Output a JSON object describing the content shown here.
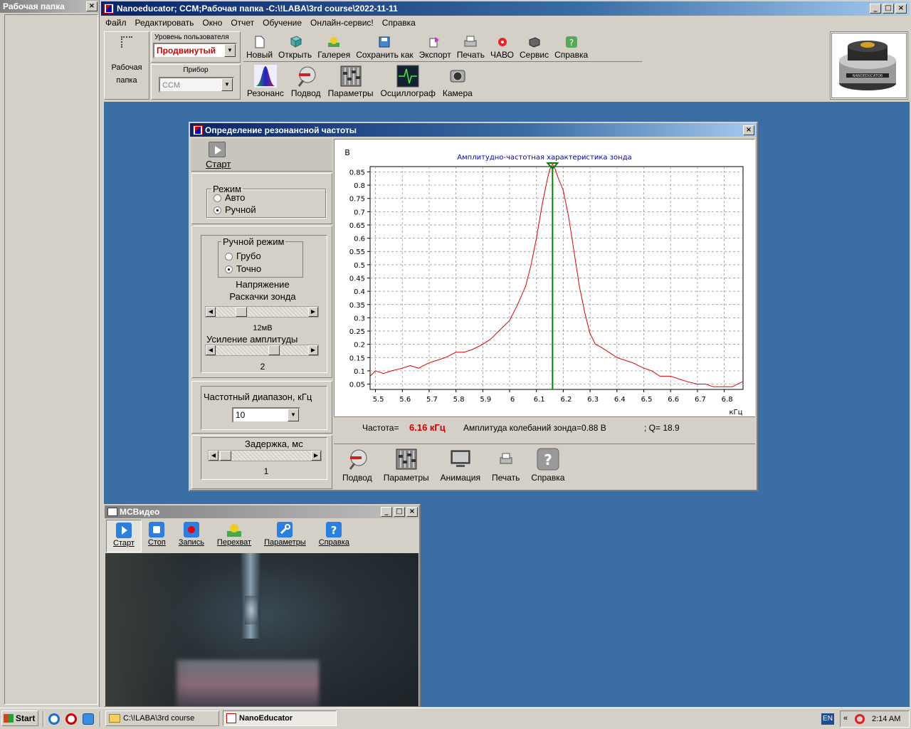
{
  "left_panel": {
    "title": "Рабочая папка"
  },
  "main_window": {
    "title": "Nanoeducator; CCM;Рабочая папка -C:\\!LABA\\3rd course\\2022-11-11",
    "menu": [
      "Файл",
      "Редактировать",
      "Окно",
      "Отчет",
      "Обучение",
      "Онлайн-сервис!",
      "Справка"
    ],
    "workfolder_label_1": "Рабочая",
    "workfolder_label_2": "папка",
    "user_level_label": "Уровень пользователя",
    "user_level_value": "Продвинутый",
    "device_label": "Прибор",
    "device_value": "CCM",
    "toolbar_row1": [
      {
        "label": "Новый",
        "icon": "new-file-icon"
      },
      {
        "label": "Открыть",
        "icon": "open-icon"
      },
      {
        "label": "Галерея",
        "icon": "gallery-icon"
      },
      {
        "label": "Сохранить как",
        "icon": "save-icon"
      },
      {
        "label": "Экспорт",
        "icon": "export-icon"
      },
      {
        "label": "Печать",
        "icon": "print-icon"
      },
      {
        "label": "ЧАВО",
        "icon": "faq-icon"
      },
      {
        "label": "Сервис",
        "icon": "service-icon"
      },
      {
        "label": "Справка",
        "icon": "help-icon"
      }
    ],
    "toolbar_row2": [
      {
        "label": "Резонанс",
        "icon": "resonance-icon"
      },
      {
        "label": "Подвод",
        "icon": "approach-icon"
      },
      {
        "label": "Параметры",
        "icon": "parameters-icon"
      },
      {
        "label": "Осциллограф",
        "icon": "oscilloscope-icon"
      },
      {
        "label": "Камера",
        "icon": "camera-icon"
      }
    ],
    "device_logo_text": "NANOEDUCATOR"
  },
  "resonance_dialog": {
    "title": "Определение резонансной частоты",
    "start_label": "Старт",
    "mode_group": "Режим",
    "mode_auto": "Авто",
    "mode_manual": "Ручной",
    "manual_group": "Ручной режим",
    "manual_coarse": "Грубо",
    "manual_fine": "Точно",
    "voltage_label_1": "Напряжение",
    "voltage_label_2": "Раскачки зонда",
    "voltage_value": "12мВ",
    "gain_label": "Усиление амплитуды",
    "gain_value": "2",
    "freq_range_label": "Частотный диапазон, кГц",
    "freq_range_value": "10",
    "delay_label": "Задержка, мс",
    "delay_value": "1",
    "status_freq_label": "Частота=",
    "status_freq_value": "6.16 кГц",
    "status_amp": "Амплитуда колебаний зонда=0.88 В",
    "status_q": "; Q= 18.9",
    "bottom_tools": [
      {
        "label": "Подвод",
        "icon": "approach-icon"
      },
      {
        "label": "Параметры",
        "icon": "parameters-icon"
      },
      {
        "label": "Анимация",
        "icon": "animation-icon"
      },
      {
        "label": "Печать",
        "icon": "print-icon"
      },
      {
        "label": "Справка",
        "icon": "help-icon"
      }
    ]
  },
  "chart_data": {
    "type": "line",
    "title": "Амплитудно-частотная характеристика зонда",
    "ylabel": "В",
    "xlabel": "кГц",
    "xlim": [
      5.48,
      6.87
    ],
    "ylim": [
      0.03,
      0.87
    ],
    "xticks": [
      "5.5",
      "5.6",
      "5.7",
      "5.8",
      "5.9",
      "6",
      "6.1",
      "6.2",
      "6.3",
      "6.4",
      "6.5",
      "6.6",
      "6.7",
      "6.8"
    ],
    "yticks": [
      "0.05",
      "0.1",
      "0.15",
      "0.2",
      "0.25",
      "0.3",
      "0.35",
      "0.4",
      "0.45",
      "0.5",
      "0.55",
      "0.6",
      "0.65",
      "0.7",
      "0.75",
      "0.8",
      "0.85"
    ],
    "grid": true,
    "marker_x": 6.16,
    "series": [
      {
        "color": "#e00000",
        "x": [
          5.48,
          5.5,
          5.53,
          5.56,
          5.6,
          5.63,
          5.66,
          5.7,
          5.73,
          5.76,
          5.8,
          5.83,
          5.86,
          5.9,
          5.93,
          5.96,
          6.0,
          6.03,
          6.06,
          6.08,
          6.1,
          6.12,
          6.14,
          6.15,
          6.16,
          6.17,
          6.18,
          6.2,
          6.22,
          6.24,
          6.26,
          6.28,
          6.3,
          6.32,
          6.34,
          6.37,
          6.4,
          6.43,
          6.46,
          6.5,
          6.53,
          6.56,
          6.6,
          6.63,
          6.66,
          6.7,
          6.73,
          6.76,
          6.8,
          6.83,
          6.87
        ],
        "values": [
          0.08,
          0.1,
          0.09,
          0.1,
          0.11,
          0.12,
          0.11,
          0.13,
          0.14,
          0.15,
          0.17,
          0.17,
          0.18,
          0.2,
          0.22,
          0.25,
          0.29,
          0.35,
          0.42,
          0.5,
          0.6,
          0.72,
          0.82,
          0.86,
          0.88,
          0.86,
          0.83,
          0.78,
          0.68,
          0.55,
          0.42,
          0.32,
          0.24,
          0.2,
          0.19,
          0.17,
          0.15,
          0.14,
          0.13,
          0.11,
          0.1,
          0.08,
          0.08,
          0.07,
          0.06,
          0.05,
          0.05,
          0.04,
          0.04,
          0.04,
          0.06
        ]
      }
    ]
  },
  "video_window": {
    "title": "MCВидео",
    "tools": [
      {
        "label": "Старт",
        "icon": "play-icon"
      },
      {
        "label": "Стоп",
        "icon": "stop-icon"
      },
      {
        "label": "Запись",
        "icon": "record-icon"
      },
      {
        "label": "Перехват",
        "icon": "capture-icon"
      },
      {
        "label": "Параметры",
        "icon": "settings-icon"
      },
      {
        "label": "Справка",
        "icon": "help-icon"
      }
    ]
  },
  "taskbar": {
    "start": "Start",
    "tasks": [
      "C:\\!LABA\\3rd course",
      "NanoEducator"
    ],
    "lang": "EN",
    "time": "2:14 AM"
  }
}
